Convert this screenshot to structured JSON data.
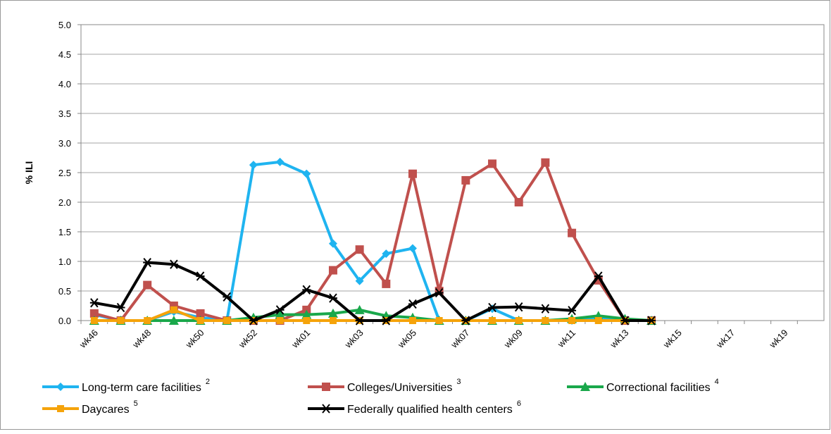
{
  "chart_data": {
    "type": "line",
    "y_label": "% ILI",
    "categories": [
      "wk46",
      null,
      "wk48",
      null,
      "wk50",
      null,
      "wk52",
      null,
      "wk01",
      null,
      "wk03",
      null,
      "wk05",
      null,
      "wk07",
      null,
      "wk09",
      null,
      "wk11",
      null,
      "wk13",
      null,
      "wk15",
      null,
      "wk17",
      null,
      "wk19",
      null
    ],
    "ylim": [
      0,
      5
    ],
    "yticks": [
      {
        "value": 0,
        "label": "0.0"
      },
      {
        "value": 0.5,
        "label": "0.5"
      },
      {
        "value": 1,
        "label": "1.0"
      },
      {
        "value": 1.5,
        "label": "1.5"
      },
      {
        "value": 2,
        "label": "2.0"
      },
      {
        "value": 2.5,
        "label": "2.5"
      },
      {
        "value": 3,
        "label": "3.0"
      },
      {
        "value": 3.5,
        "label": "3.5"
      },
      {
        "value": 4,
        "label": "4.0"
      },
      {
        "value": 4.5,
        "label": "4.5"
      },
      {
        "value": 5,
        "label": "5.0"
      }
    ],
    "grid": true,
    "legend": "bottom",
    "series": [
      {
        "name": "Long-term care facilities",
        "note": "2",
        "color": "#1fb4f0",
        "marker": "diamond",
        "values": [
          0.1,
          0,
          0,
          0.15,
          0.05,
          0,
          2.63,
          2.68,
          2.48,
          1.3,
          0.67,
          1.13,
          1.22,
          0,
          0,
          0.2,
          0,
          0,
          0,
          0.05,
          0,
          0,
          null,
          null,
          null,
          null,
          null,
          null
        ]
      },
      {
        "name": "Colleges/Universities",
        "note": "3",
        "color": "#c0504d",
        "marker": "square",
        "values": [
          0.12,
          0,
          0.6,
          0.25,
          0.12,
          0,
          0,
          0,
          0.18,
          0.85,
          1.2,
          0.62,
          2.48,
          0.5,
          2.37,
          2.65,
          2,
          2.67,
          1.48,
          0.68,
          0,
          0,
          null,
          null,
          null,
          null,
          null,
          null
        ]
      },
      {
        "name": "Correctional facilities",
        "note": "4",
        "color": "#1aa84b",
        "marker": "triangle",
        "values": [
          0,
          0,
          0,
          0,
          0,
          0,
          0.05,
          0.1,
          0.1,
          0.12,
          0.18,
          0.08,
          0.05,
          0,
          0,
          0,
          0,
          0,
          0.03,
          0.08,
          0.03,
          0,
          null,
          null,
          null,
          null,
          null,
          null
        ]
      },
      {
        "name": "Daycares",
        "note": "5",
        "color": "#f5a30a",
        "marker": "smallsquare",
        "values": [
          0,
          0,
          0,
          0.18,
          0,
          0,
          0,
          0,
          0,
          0,
          0,
          0,
          0,
          0,
          0,
          0,
          0,
          0,
          0,
          0,
          0,
          0,
          null,
          null,
          null,
          null,
          null,
          null
        ]
      },
      {
        "name": "Federally qualified health centers",
        "note": "6",
        "color": "#000000",
        "marker": "star",
        "values": [
          0.3,
          0.22,
          0.98,
          0.95,
          0.75,
          0.4,
          0,
          0.18,
          0.52,
          0.38,
          0,
          0,
          0.28,
          0.47,
          0,
          0.22,
          0.23,
          0.2,
          0.17,
          0.75,
          0,
          0,
          null,
          null,
          null,
          null,
          null,
          null
        ]
      }
    ]
  }
}
